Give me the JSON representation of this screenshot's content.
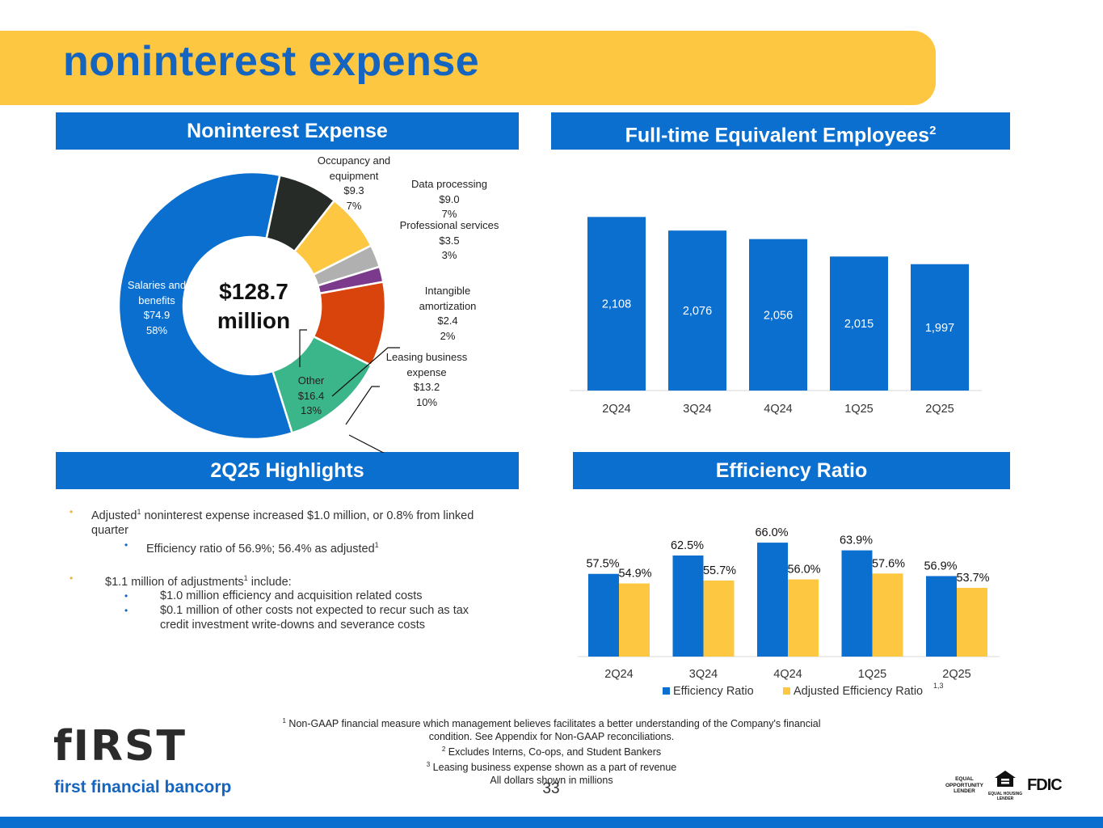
{
  "page": {
    "title": "noninterest expense",
    "page_number": "33"
  },
  "sections": {
    "noninterest_expense": "Noninterest Expense",
    "fte": "Full-time Equivalent Employees",
    "fte_sup": "2",
    "highlights": "2Q25 Highlights",
    "efficiency": "Efficiency Ratio"
  },
  "donut": {
    "center_line1": "$128.7",
    "center_line2": "million",
    "labels": {
      "salaries": [
        "Salaries and",
        "benefits",
        "$74.9",
        "58%"
      ],
      "occupancy": [
        "Occupancy and",
        "equipment",
        "$9.3",
        "7%"
      ],
      "data": [
        "Data processing",
        "$9.0",
        "7%"
      ],
      "professional": [
        "Professional services",
        "$3.5",
        "3%"
      ],
      "intangible": [
        "Intangible",
        "amortization",
        "$2.4",
        "2%"
      ],
      "leasing": [
        "Leasing business",
        "expense",
        "$13.2",
        "10%"
      ],
      "other": [
        "Other",
        "$16.4",
        "13%"
      ]
    }
  },
  "highlights": {
    "b1_pre": "Adjusted",
    "b1_sup": "1",
    "b1_post": " noninterest expense increased $1.0 million, or 0.8% from linked quarter",
    "b1_sub": "Efficiency ratio of 56.9%; 56.4% as adjusted",
    "b1_sub_sup": "1",
    "b2_pre": "$1.1 million of adjustments",
    "b2_sup": "1",
    "b2_post": " include:",
    "b2_sub1": "$1.0 million efficiency and acquisition related costs",
    "b2_sub2": "$0.1 million of other costs not expected to recur such as tax credit investment write-downs and severance costs"
  },
  "footnotes": {
    "f1_sup": "1",
    "f1": " Non-GAAP financial measure which management believes facilitates a better understanding of the Company's financial condition.  See Appendix for Non-GAAP reconciliations.",
    "f2_sup": "2",
    "f2": " Excludes Interns, Co-ops, and Student Bankers",
    "f3_sup": "3",
    "f3": " Leasing business expense shown as a part of revenue",
    "f4": "All dollars shown in millions"
  },
  "logo": {
    "name": "fIRST",
    "subtitle": "first financial bancorp"
  },
  "badges": {
    "eol": [
      "EQUAL",
      "OPPORTUNITY",
      "LENDER"
    ],
    "ehl": [
      "EQUAL HOUSING",
      "LENDER"
    ],
    "fdic": "FDIC"
  },
  "colors": {
    "primary": "#0B6FD0",
    "accent": "#FDC741",
    "title_text": "#1565C0",
    "salaries": "#0B6FD0",
    "occupancy": "#262B28",
    "data": "#FDC741",
    "professional": "#B0B0B0",
    "intangible": "#7B3A8B",
    "leasing": "#D9440C",
    "other": "#3BB58A"
  },
  "chart_data": [
    {
      "type": "pie",
      "title": "Noninterest Expense",
      "center_label": "$128.7 million",
      "categories": [
        "Salaries and benefits",
        "Occupancy and equipment",
        "Data processing",
        "Professional services",
        "Intangible amortization",
        "Leasing business expense",
        "Other"
      ],
      "values": [
        74.9,
        9.3,
        9.0,
        3.5,
        2.4,
        13.2,
        16.4
      ],
      "percents": [
        "58%",
        "7%",
        "7%",
        "3%",
        "2%",
        "10%",
        "13%"
      ]
    },
    {
      "type": "bar",
      "title": "Full-time Equivalent Employees",
      "categories": [
        "2Q24",
        "3Q24",
        "4Q24",
        "1Q25",
        "2Q25"
      ],
      "values": [
        2108,
        2076,
        2056,
        2015,
        1997
      ],
      "value_labels": [
        "2,108",
        "2,076",
        "2,056",
        "2,015",
        "1,997"
      ],
      "ylim": [
        1700,
        2120
      ]
    },
    {
      "type": "bar",
      "title": "Efficiency Ratio",
      "categories": [
        "2Q24",
        "3Q24",
        "4Q24",
        "1Q25",
        "2Q25"
      ],
      "series": [
        {
          "name": "Efficiency Ratio",
          "values": [
            57.5,
            62.5,
            66.0,
            63.9,
            56.9
          ],
          "labels": [
            "57.5%",
            "62.5%",
            "66.0%",
            "63.9%",
            "56.9%"
          ]
        },
        {
          "name": "Adjusted Efficiency Ratio",
          "values": [
            54.9,
            55.7,
            56.0,
            57.6,
            53.7
          ],
          "labels": [
            "54.9%",
            "55.7%",
            "56.0%",
            "57.6%",
            "53.7%"
          ]
        }
      ],
      "legend_sup": "1,3",
      "ylim": [
        35,
        68
      ]
    }
  ]
}
